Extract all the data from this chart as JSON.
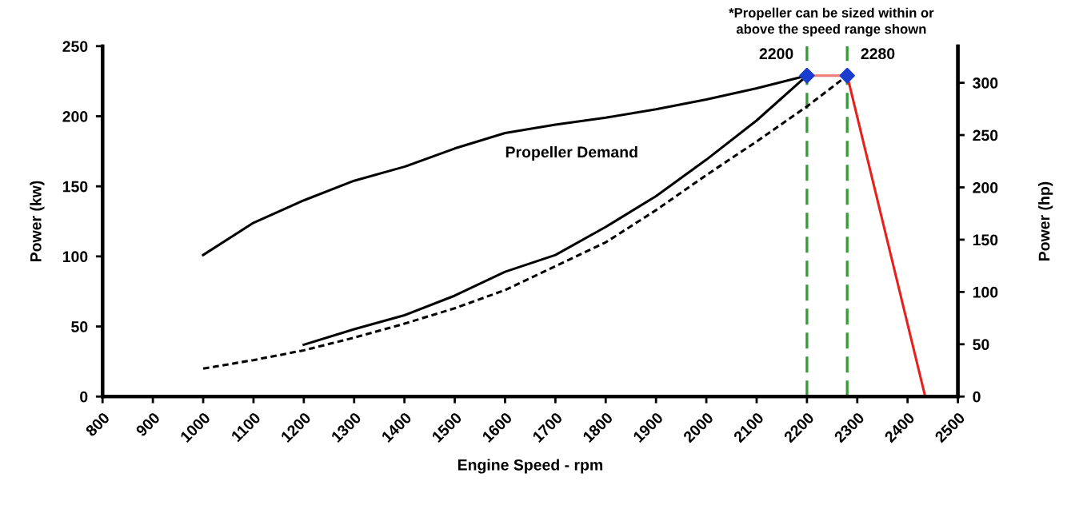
{
  "chart_data": {
    "type": "line",
    "xlabel": "Engine Speed - rpm",
    "ylabel": "Power (kw)",
    "y2label": "Power (hp)",
    "xlim": [
      800,
      2500
    ],
    "xticks": [
      800,
      900,
      1000,
      1100,
      1200,
      1300,
      1400,
      1500,
      1600,
      1700,
      1800,
      1900,
      2000,
      2100,
      2200,
      2300,
      2400,
      2500
    ],
    "ylim": [
      0,
      250
    ],
    "yticks": [
      0,
      50,
      100,
      150,
      200,
      250
    ],
    "y2lim": [
      0,
      335
    ],
    "y2ticks": [
      0,
      50,
      100,
      150,
      200,
      250,
      300
    ],
    "grid": false,
    "legend": false,
    "series": [
      {
        "color": "#000000",
        "line_style": "solid",
        "x": [
          1000,
          1100,
          1200,
          1300,
          1400,
          1500,
          1600,
          1700,
          1800,
          1900,
          2000,
          2100,
          2200
        ],
        "values": [
          101,
          124,
          140,
          154,
          164,
          177,
          188,
          194,
          199,
          205,
          212,
          220,
          229
        ]
      },
      {
        "name": "Propeller Demand",
        "color": "#000000",
        "line_style": "solid",
        "x": [
          1200,
          1300,
          1400,
          1500,
          1600,
          1700,
          1800,
          1900,
          2000,
          2100,
          2200
        ],
        "values": [
          37,
          48,
          58,
          72,
          89,
          101,
          121,
          143,
          169,
          197,
          229
        ]
      },
      {
        "color": "#000000",
        "line_style": "dotted",
        "x": [
          1000,
          1100,
          1200,
          1300,
          1400,
          1500,
          1600,
          1700,
          1800,
          1900,
          2000,
          2100,
          2200,
          2280
        ],
        "values": [
          20,
          26,
          33,
          42,
          52,
          63,
          76,
          93,
          110,
          133,
          158,
          182,
          207,
          229
        ]
      },
      {
        "color": "#f08080",
        "line_style": "solid",
        "x": [
          2200,
          2280
        ],
        "values": [
          229,
          229
        ]
      },
      {
        "color": "#e8201c",
        "line_style": "solid",
        "x": [
          2280,
          2435
        ],
        "values": [
          229,
          0
        ]
      },
      {
        "type": "scatter",
        "marker": "diamond",
        "color": "#1a3ccf",
        "x": [
          2200,
          2280
        ],
        "values": [
          229,
          229
        ]
      }
    ],
    "ref_lines": [
      {
        "axis": "x",
        "value": 2200,
        "color": "#3a9a3a",
        "line_style": "dashed"
      },
      {
        "axis": "x",
        "value": 2280,
        "color": "#3a9a3a",
        "line_style": "dashed"
      }
    ],
    "annotations": [
      {
        "text": "2200",
        "x": 2200,
        "y": 229
      },
      {
        "text": "2280",
        "x": 2280,
        "y": 229
      },
      "*Propeller can be sized within or\nabove the speed range shown"
    ]
  }
}
